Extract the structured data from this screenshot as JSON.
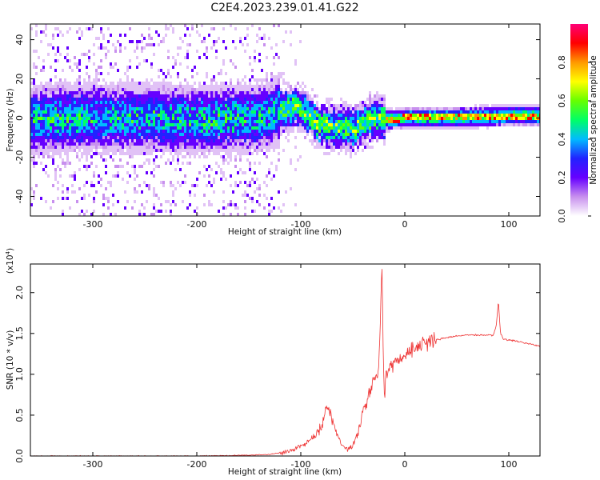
{
  "figure_title": "C2E4.2023.239.01.41.G22",
  "chart_data": [
    {
      "type": "heatmap",
      "name": "spectrogram",
      "xlabel": "Height of straight line (km)",
      "ylabel": "Frequency (Hz)",
      "xlim": [
        -360,
        130
      ],
      "ylim": [
        -50,
        48
      ],
      "x_ticks": [
        "-300",
        "-200",
        "-100",
        "0",
        "100"
      ],
      "x_tick_values": [
        -300,
        -200,
        -100,
        0,
        100
      ],
      "y_ticks": [
        "40",
        "20",
        "0",
        "-20",
        "-40"
      ],
      "y_tick_values": [
        40,
        20,
        0,
        -20,
        -40
      ],
      "signal_center_hz": [
        [
          -360,
          0
        ],
        [
          -300,
          1
        ],
        [
          -200,
          0
        ],
        [
          -140,
          1
        ],
        [
          -120,
          5
        ],
        [
          -105,
          7
        ],
        [
          -95,
          3
        ],
        [
          -85,
          -2
        ],
        [
          -70,
          -4
        ],
        [
          -60,
          -4
        ],
        [
          -50,
          -5
        ],
        [
          -40,
          -2
        ],
        [
          -30,
          1
        ],
        [
          -20,
          0
        ],
        [
          -10,
          0
        ],
        [
          0,
          1
        ],
        [
          50,
          1
        ],
        [
          100,
          2
        ],
        [
          130,
          2
        ]
      ],
      "colorbar": {
        "label": "Normalized spectral amplitude",
        "range": [
          0.0,
          1.0
        ],
        "ticks": [
          "0.0",
          "0.2",
          "0.4",
          "0.6",
          "0.8"
        ],
        "tick_values": [
          0.0,
          0.2,
          0.4,
          0.6,
          0.8
        ],
        "colors": [
          "#ffffff",
          "#c890ee",
          "#6600ff",
          "#2222ff",
          "#00bbff",
          "#00ff66",
          "#66ff00",
          "#ffff00",
          "#ff9900",
          "#ff0000",
          "#ff0077"
        ]
      }
    },
    {
      "type": "line",
      "name": "snr",
      "xlabel": "Height of straight line (km)",
      "ylabel": "SNR (10 * v/v)",
      "y_multiplier": "(x10",
      "y_multiplier_exp": "4",
      "y_multiplier_close": ")",
      "color": "#ee3333",
      "xlim": [
        -360,
        130
      ],
      "ylim": [
        0,
        2.35
      ],
      "x_ticks": [
        "-300",
        "-200",
        "-100",
        "0",
        "100"
      ],
      "x_tick_values": [
        -300,
        -200,
        -100,
        0,
        100
      ],
      "y_ticks": [
        "0.0",
        "0.5",
        "1.0",
        "1.5",
        "2.0"
      ],
      "y_tick_values": [
        0.0,
        0.5,
        1.0,
        1.5,
        2.0
      ],
      "series": [
        {
          "name": "SNR",
          "x": [
            -360,
            -300,
            -200,
            -150,
            -130,
            -120,
            -110,
            -100,
            -90,
            -80,
            -75,
            -70,
            -65,
            -60,
            -55,
            -50,
            -45,
            -40,
            -35,
            -30,
            -25,
            -22,
            -20,
            -18,
            -15,
            -10,
            -5,
            0,
            10,
            20,
            30,
            40,
            50,
            60,
            70,
            80,
            85,
            88,
            90,
            92,
            95,
            100,
            110,
            120,
            130
          ],
          "y": [
            0.0,
            0.0,
            0.0,
            0.01,
            0.02,
            0.04,
            0.07,
            0.12,
            0.2,
            0.35,
            0.6,
            0.45,
            0.25,
            0.12,
            0.08,
            0.12,
            0.3,
            0.55,
            0.75,
            0.9,
            1.05,
            2.35,
            0.7,
            1.0,
            1.05,
            1.15,
            1.2,
            1.25,
            1.33,
            1.38,
            1.42,
            1.45,
            1.47,
            1.48,
            1.48,
            1.48,
            1.48,
            1.6,
            1.9,
            1.5,
            1.43,
            1.42,
            1.4,
            1.37,
            1.35
          ]
        }
      ]
    }
  ]
}
